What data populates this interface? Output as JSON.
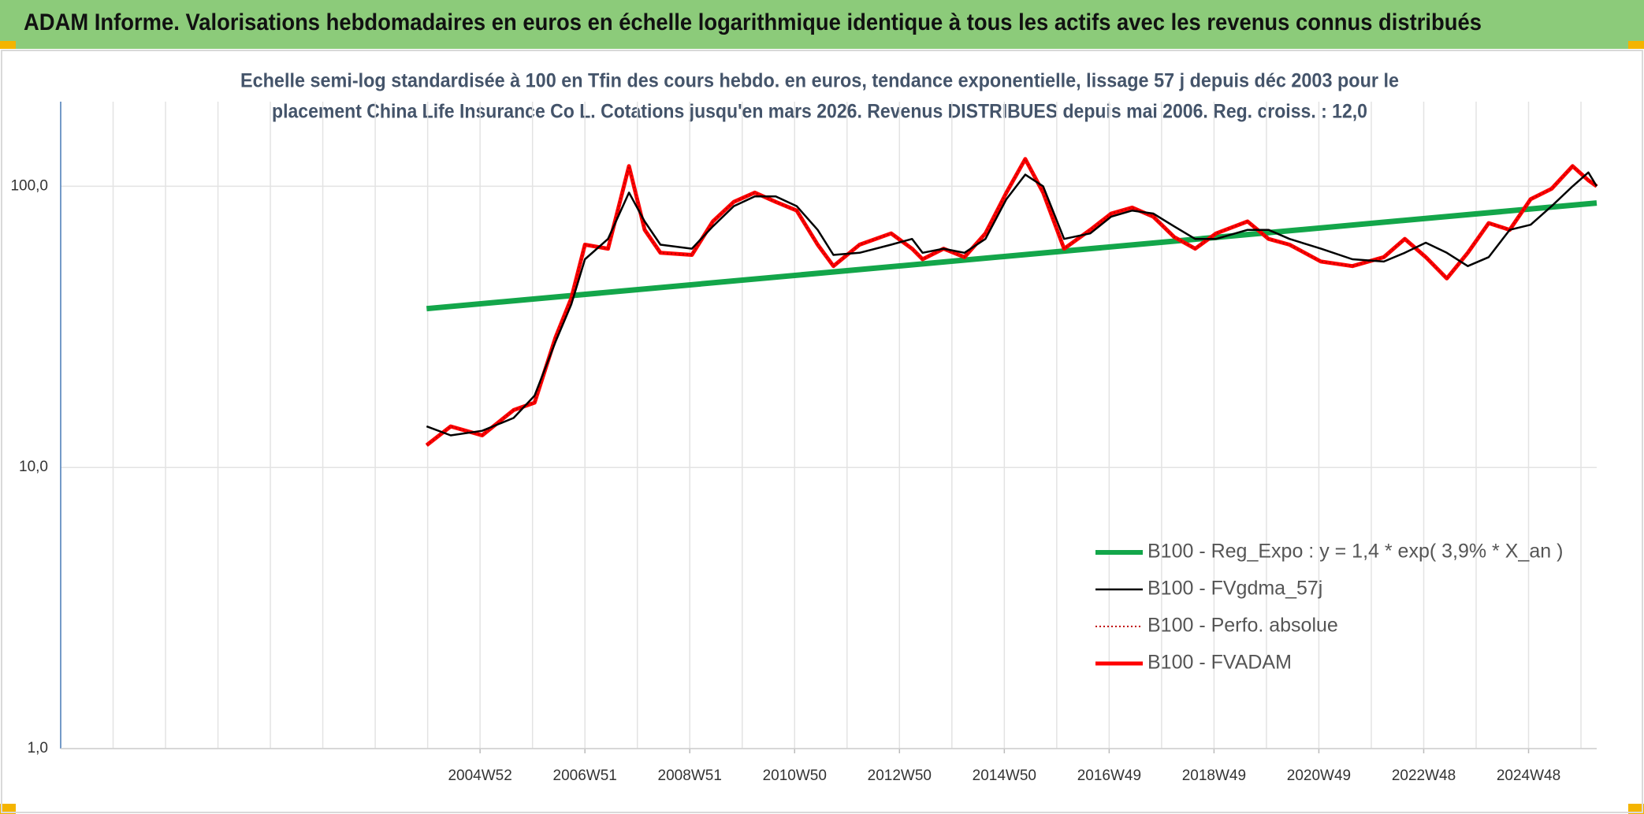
{
  "chart_data": {
    "type": "line",
    "title": "ADAM Informe. Valorisations hebdomadaires en euros en échelle logarithmique identique à tous les actifs avec les revenus connus distribués",
    "subtitle": [
      "Echelle semi-log standardisée à 100 en Tfin des cours hebdo. en euros, tendance exponentielle, lissage 57 j depuis déc 2003 pour le",
      "placement China Life Insurance Co L. Cotations jusqu'en mars 2026. Revenus DISTRIBUES depuis mai 2006. Reg. croiss. : 12,0"
    ],
    "log_y": true,
    "grid": true,
    "legend": "right",
    "ylim": [
      1,
      200
    ],
    "yticks": [
      {
        "value": 1,
        "label": "1,0"
      },
      {
        "value": 10,
        "label": "10,0"
      },
      {
        "value": 100,
        "label": "100,0"
      }
    ],
    "xlim": [
      1997,
      2026.3
    ],
    "xgrid": [
      1997,
      1998,
      1999,
      2000,
      2001,
      2002,
      2003,
      2004,
      2005,
      2006,
      2007,
      2008,
      2009,
      2010,
      2011,
      2012,
      2013,
      2014,
      2015,
      2016,
      2017,
      2018,
      2019,
      2020,
      2021,
      2022,
      2023,
      2024,
      2025,
      2026
    ],
    "xticks": [
      {
        "value": 2005,
        "label": "2004W52"
      },
      {
        "value": 2007,
        "label": "2006W51"
      },
      {
        "value": 2009,
        "label": "2008W51"
      },
      {
        "value": 2011,
        "label": "2010W50"
      },
      {
        "value": 2013,
        "label": "2012W50"
      },
      {
        "value": 2015,
        "label": "2014W50"
      },
      {
        "value": 2017,
        "label": "2016W49"
      },
      {
        "value": 2019,
        "label": "2018W49"
      },
      {
        "value": 2021,
        "label": "2020W49"
      },
      {
        "value": 2023,
        "label": "2022W48"
      },
      {
        "value": 2025,
        "label": "2024W48"
      }
    ],
    "series": [
      {
        "name": "B100 - Reg_Expo : y = 1,4 * exp( 3,9% *  X_an )",
        "color": "#13a64a",
        "style": "solid",
        "width": 7,
        "x": [
          2003.98,
          2026.3
        ],
        "values": [
          36.7,
          87.2
        ]
      },
      {
        "name": "B100 - FVgdma_57j",
        "color": "#000000",
        "style": "solid",
        "width": 2.5,
        "x": [
          2003.98,
          2004.44,
          2005.04,
          2005.64,
          2006.04,
          2006.44,
          2006.74,
          2007.0,
          2007.44,
          2007.84,
          2008.14,
          2008.44,
          2009.04,
          2009.44,
          2009.84,
          2010.24,
          2010.64,
          2011.04,
          2011.44,
          2011.74,
          2012.24,
          2012.84,
          2013.24,
          2013.44,
          2013.84,
          2014.24,
          2014.64,
          2015.04,
          2015.4,
          2015.74,
          2016.14,
          2016.64,
          2017.04,
          2017.44,
          2017.84,
          2018.24,
          2018.64,
          2019.04,
          2019.64,
          2020.04,
          2020.44,
          2021.04,
          2021.64,
          2022.24,
          2022.64,
          2023.04,
          2023.44,
          2023.84,
          2024.24,
          2024.64,
          2025.04,
          2025.44,
          2025.84,
          2026.14,
          2026.3
        ],
        "values": [
          14,
          13,
          13.5,
          15,
          18,
          28,
          38,
          55,
          65,
          95,
          75,
          62,
          60,
          72,
          85,
          92,
          92,
          85,
          70,
          57,
          58,
          62,
          65,
          58,
          60,
          58,
          65,
          90,
          110,
          100,
          65,
          68,
          78,
          82,
          80,
          72,
          65,
          65,
          70,
          70,
          65,
          60,
          55,
          54,
          58,
          63,
          58,
          52,
          56,
          70,
          73,
          85,
          100,
          112,
          100
        ]
      },
      {
        "name": "B100 - Perfo. absolue",
        "color": "#c00000",
        "style": "dotted",
        "width": 2,
        "x": [
          2003.98,
          2004.44,
          2005.04,
          2005.64,
          2006.04,
          2006.44,
          2006.74,
          2007.0,
          2007.44,
          2007.84,
          2008.14,
          2008.44,
          2009.04,
          2009.44,
          2009.84,
          2010.24,
          2010.64,
          2011.04,
          2011.44,
          2011.74,
          2012.24,
          2012.84,
          2013.24,
          2013.44,
          2013.84,
          2014.24,
          2014.64,
          2015.04,
          2015.4,
          2015.74,
          2016.14,
          2016.64,
          2017.04,
          2017.44,
          2017.84,
          2018.24,
          2018.64,
          2019.04,
          2019.64,
          2020.04,
          2020.44,
          2021.04,
          2021.64,
          2022.24,
          2022.64,
          2023.04,
          2023.44,
          2023.84,
          2024.24,
          2024.64,
          2025.04,
          2025.44,
          2025.84,
          2026.14,
          2026.3
        ],
        "values": [
          12,
          14,
          13,
          16,
          17,
          29,
          40,
          62,
          60,
          118,
          70,
          58,
          57,
          75,
          88,
          95,
          88,
          82,
          62,
          52,
          62,
          68,
          60,
          55,
          60,
          56,
          68,
          95,
          125,
          95,
          60,
          70,
          80,
          84,
          78,
          66,
          60,
          68,
          75,
          65,
          62,
          54,
          52,
          56,
          65,
          56,
          47,
          58,
          74,
          70,
          90,
          98,
          118,
          105,
          100
        ]
      },
      {
        "name": "B100 - FVADAM",
        "color": "#ff0000",
        "style": "solid",
        "width": 5,
        "x": [
          2003.98,
          2004.44,
          2005.04,
          2005.64,
          2006.04,
          2006.44,
          2006.74,
          2007.0,
          2007.44,
          2007.84,
          2008.14,
          2008.44,
          2009.04,
          2009.44,
          2009.84,
          2010.24,
          2010.64,
          2011.04,
          2011.44,
          2011.74,
          2012.24,
          2012.84,
          2013.24,
          2013.44,
          2013.84,
          2014.24,
          2014.64,
          2015.04,
          2015.4,
          2015.74,
          2016.14,
          2016.64,
          2017.04,
          2017.44,
          2017.84,
          2018.24,
          2018.64,
          2019.04,
          2019.64,
          2020.04,
          2020.44,
          2021.04,
          2021.64,
          2022.24,
          2022.64,
          2023.04,
          2023.44,
          2023.84,
          2024.24,
          2024.64,
          2025.04,
          2025.44,
          2025.84,
          2026.14,
          2026.3
        ],
        "values": [
          12,
          14,
          13,
          16,
          17,
          29,
          40,
          62,
          60,
          118,
          70,
          58,
          57,
          75,
          88,
          95,
          88,
          82,
          62,
          52,
          62,
          68,
          60,
          55,
          60,
          56,
          68,
          95,
          125,
          95,
          60,
          70,
          80,
          84,
          78,
          66,
          60,
          68,
          75,
          65,
          62,
          54,
          52,
          56,
          65,
          56,
          47,
          58,
          74,
          70,
          90,
          98,
          118,
          105,
          100
        ]
      }
    ]
  }
}
